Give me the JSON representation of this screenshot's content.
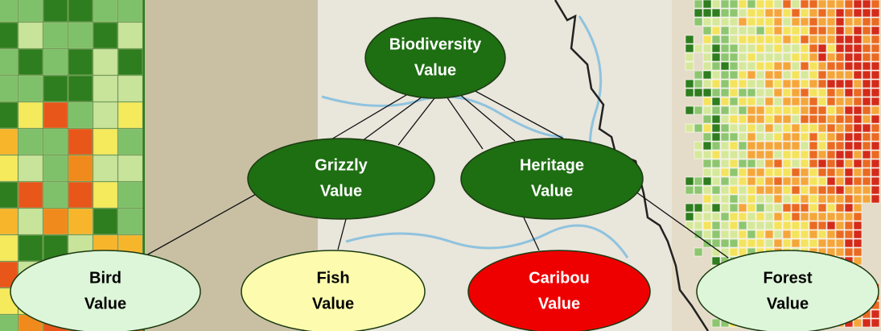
{
  "nodes": [
    {
      "label": [
        "Biodiversity",
        "Value"
      ]
    },
    {
      "label": [
        "Grizzly",
        "Value"
      ]
    },
    {
      "label": [
        "Heritage",
        "Value"
      ]
    },
    {
      "label": [
        "Bird",
        "Value"
      ]
    },
    {
      "label": [
        "Fish",
        "Value"
      ]
    },
    {
      "label": [
        "Caribou",
        "Value"
      ]
    },
    {
      "label": [
        "Forest",
        "Value"
      ]
    }
  ]
}
